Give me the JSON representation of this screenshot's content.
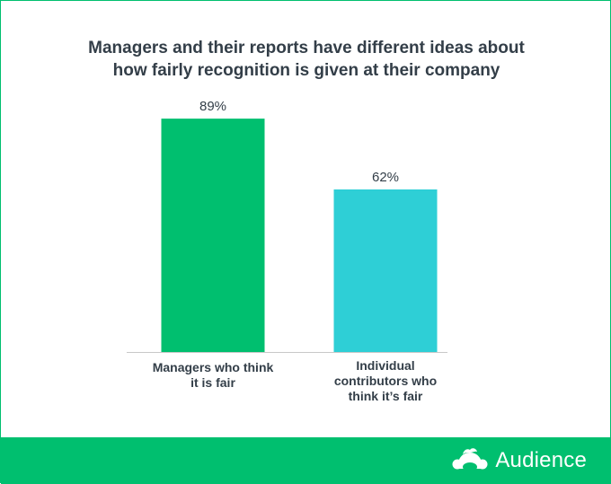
{
  "title_lines": [
    "Managers and their reports have different ideas about",
    "how fairly recognition is given at their company"
  ],
  "chart_data": {
    "type": "bar",
    "title": "Managers and their reports have different ideas about how fairly recognition is given at their company",
    "categories": [
      "Managers who think it is fair",
      "Individual contributors who think it’s fair"
    ],
    "category_lines": [
      [
        "Managers who think",
        "it is fair"
      ],
      [
        "Individual",
        "contributors who",
        "think it’s fair"
      ]
    ],
    "values": [
      89,
      62
    ],
    "value_labels": [
      "89%",
      "62%"
    ],
    "colors": [
      "#00bf6f",
      "#2ecfd6"
    ],
    "ylim": [
      0,
      100
    ],
    "grid": false,
    "legend": "none",
    "xlabel": "",
    "ylabel": ""
  },
  "footer": {
    "brand_name": "Audience",
    "brand_icon": "monkey-logo-icon",
    "background": "#00bf6f"
  }
}
